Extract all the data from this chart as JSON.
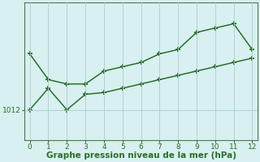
{
  "x": [
    0,
    1,
    2,
    3,
    4,
    5,
    6,
    7,
    8,
    9,
    10,
    11,
    12
  ],
  "y_upper": [
    1018.5,
    1015.5,
    1015.0,
    1015.0,
    1016.5,
    1017.0,
    1017.5,
    1018.5,
    1019.0,
    1021.0,
    1021.5,
    1022.0,
    1019.0
  ],
  "y_lower": [
    1012.0,
    1014.5,
    1012.0,
    1013.8,
    1014.0,
    1014.5,
    1015.0,
    1015.5,
    1016.0,
    1016.5,
    1017.0,
    1017.5,
    1018.0
  ],
  "line_color": "#2a6e2a",
  "background_color": "#d8f0f0",
  "grid_color": "#aacece",
  "xlabel": "Graphe pression niveau de la mer (hPa)",
  "ytick_labels": [
    "1012"
  ],
  "ytick_values": [
    1012
  ],
  "xlim": [
    -0.3,
    12.3
  ],
  "ylim": [
    1008.5,
    1024.5
  ],
  "marker": "+",
  "marker_size": 4,
  "line_width": 1.1,
  "xlabel_fontsize": 7.5,
  "xlabel_color": "#2a6e2a",
  "tick_fontsize": 6.5,
  "tick_color": "#2a6e2a",
  "spine_color": "#4a7a4a"
}
